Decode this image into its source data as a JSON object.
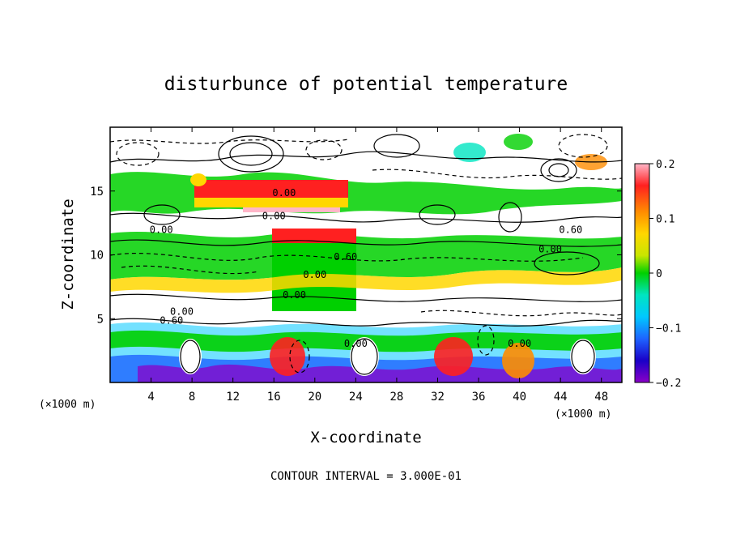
{
  "chart_data": {
    "type": "heatmap",
    "title": "disturbunce of potential temperature",
    "xlabel": "X-coordinate",
    "ylabel": "Z-coordinate",
    "x_unit": "(×1000 m)",
    "z_unit": "(×1000 m)",
    "xlim": [
      0,
      50
    ],
    "ylim": [
      0,
      20
    ],
    "x_ticks": [
      "4",
      "8",
      "12",
      "16",
      "20",
      "24",
      "28",
      "32",
      "36",
      "40",
      "44",
      "48"
    ],
    "y_ticks": [
      "5",
      "10",
      "15"
    ],
    "colorbar": {
      "range": [
        -0.2,
        0.2
      ],
      "ticks": [
        "0.2",
        "0.1",
        "0",
        "−0.1",
        "−0.2"
      ],
      "colors": [
        "#ffb6c8",
        "#ff2020",
        "#ff8c00",
        "#ffd700",
        "#c8e600",
        "#00d000",
        "#00e5c0",
        "#00c8ff",
        "#1e64ff",
        "#1a00c8",
        "#8a00c8"
      ]
    },
    "contour_interval": "CONTOUR INTERVAL = 3.000E-01",
    "contour_labels": [
      "0.00",
      "0.00",
      "0.00",
      "0.60",
      "0.00",
      "0.60",
      "0.00",
      "0.00",
      "0.00",
      "0.60",
      "0.00",
      "0.00"
    ],
    "grid": false
  }
}
